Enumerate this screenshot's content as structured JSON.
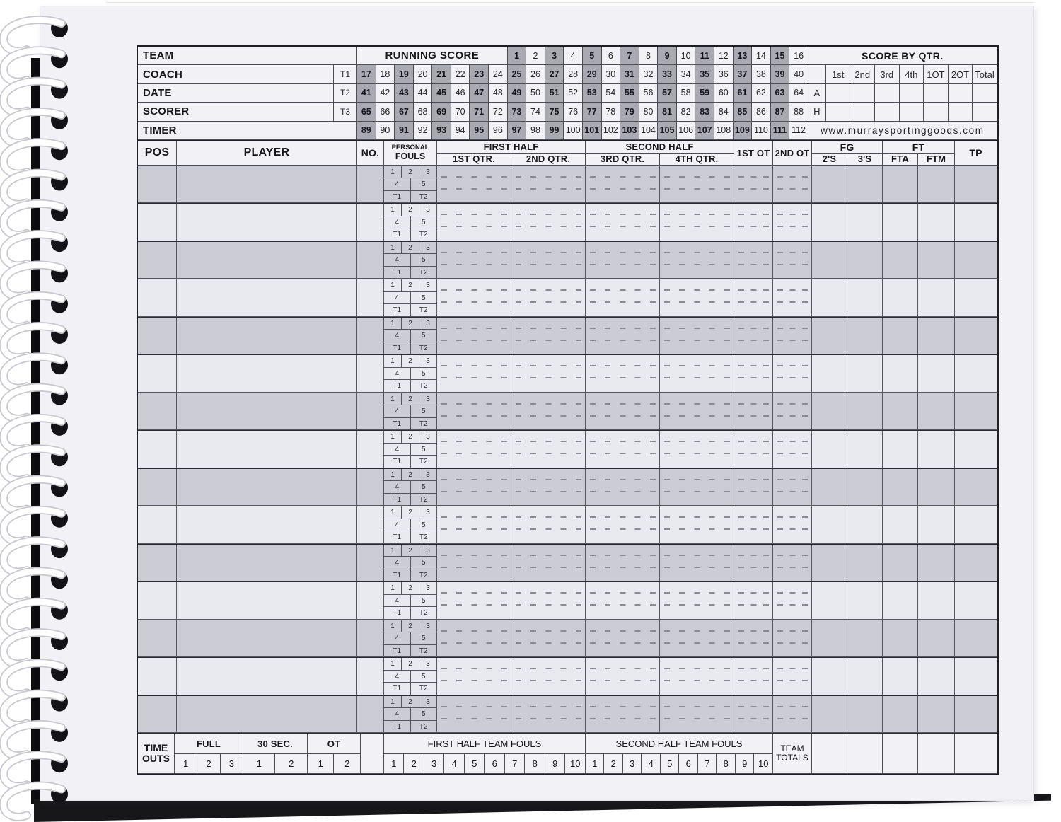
{
  "brand_url": "www.murraysportinggoods.com",
  "info": {
    "left_labels": [
      "TEAM",
      "COACH",
      "DATE",
      "SCORER",
      "TIMER"
    ],
    "t_labels": [
      "",
      "T1",
      "T2",
      "T3",
      ""
    ]
  },
  "running_score": {
    "title": "RUNNING SCORE",
    "row1": [
      1,
      2,
      3,
      4,
      5,
      6,
      7,
      8,
      9,
      10,
      11,
      12,
      13,
      14,
      15,
      16
    ],
    "rows": [
      [
        17,
        18,
        19,
        20,
        21,
        22,
        23,
        24,
        25,
        26,
        27,
        28,
        29,
        30,
        31,
        32,
        33,
        34,
        35,
        36,
        37,
        38,
        39,
        40
      ],
      [
        41,
        42,
        43,
        44,
        45,
        46,
        47,
        48,
        49,
        50,
        51,
        52,
        53,
        54,
        55,
        56,
        57,
        58,
        59,
        60,
        61,
        62,
        63,
        64
      ],
      [
        65,
        66,
        67,
        68,
        69,
        70,
        71,
        72,
        73,
        74,
        75,
        76,
        77,
        78,
        79,
        80,
        81,
        82,
        83,
        84,
        85,
        86,
        87,
        88
      ],
      [
        89,
        90,
        91,
        92,
        93,
        94,
        95,
        96,
        97,
        98,
        99,
        100,
        101,
        102,
        103,
        104,
        105,
        106,
        107,
        108,
        109,
        110,
        111,
        112
      ]
    ]
  },
  "score_by_qtr": {
    "title": "SCORE BY QTR.",
    "columns": [
      "1st",
      "2nd",
      "3rd",
      "4th",
      "1OT",
      "2OT",
      "Total"
    ],
    "team_rows": [
      "A",
      "H"
    ]
  },
  "roster": {
    "pos_header": "POS",
    "player_header": "PLAYER",
    "no_header": "NO.",
    "fouls_header_line1": "PERSONAL",
    "fouls_header_line2": "FOULS",
    "first_half": "FIRST HALF",
    "second_half": "SECOND HALF",
    "q1": "1ST QTR.",
    "q2": "2ND QTR.",
    "q3": "3RD QTR.",
    "q4": "4TH QTR.",
    "ot1": "1ST OT",
    "ot2": "2ND OT",
    "fg": "FG",
    "ft": "FT",
    "fg2": "2'S",
    "fg3": "3'S",
    "fta": "FTA",
    "ftm": "FTM",
    "tp": "TP",
    "fouls_row1": [
      "1",
      "2",
      "3"
    ],
    "fouls_row2": [
      "4",
      "5"
    ],
    "fouls_row3": [
      "T1",
      "T2"
    ],
    "row_count": 15
  },
  "footer": {
    "timeouts_line1": "TIME",
    "timeouts_line2": "OUTS",
    "full_label": "FULL",
    "full_numbers": [
      "1",
      "2",
      "3"
    ],
    "sec30_label": "30 SEC.",
    "sec30_numbers": [
      "1",
      "2"
    ],
    "ot_label": "OT",
    "ot_numbers": [
      "1",
      "2"
    ],
    "fh_fouls_label": "FIRST HALF TEAM FOULS",
    "fh_fouls_numbers": [
      "1",
      "2",
      "3",
      "4",
      "5",
      "6",
      "7",
      "8",
      "9",
      "10"
    ],
    "sh_fouls_label": "SECOND HALF TEAM FOULS",
    "sh_fouls_numbers": [
      "1",
      "2",
      "3",
      "4",
      "5",
      "6",
      "7",
      "8",
      "9",
      "10"
    ],
    "team_totals_line1": "TEAM",
    "team_totals_line2": "TOTALS"
  },
  "colors": {
    "paper": "#f1f1f6",
    "shaded_cell": "#a8a9b1",
    "shaded_row": "#cbccd4",
    "light_row": "#e9eaf0",
    "line": "#4d4d57",
    "cover": "#0d0d10"
  }
}
